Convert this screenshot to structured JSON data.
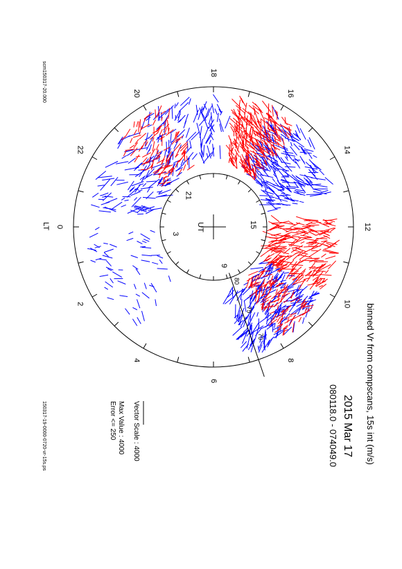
{
  "header": {
    "title": "binned Vr from compscans, 15s int (m/s)",
    "date": "2015 Mar 17",
    "time_range": "080118.0 - 074049.0"
  },
  "legend": {
    "vector_scale": "Vector Scale : 4000",
    "max_value": "Max Value : 4000",
    "error": "Error <= 250"
  },
  "footer": {
    "left_file": "scm150317-20.000",
    "right_file": "150317-19-0000-0720-vr-15s.ps"
  },
  "inner_dial": {
    "center_label": "UT",
    "hour_labels": [
      "21",
      "3",
      "15",
      "9"
    ]
  },
  "chart_data": {
    "type": "polar vector plot",
    "lt_label": "LT",
    "lt_hours": [
      0,
      2,
      4,
      6,
      8,
      10,
      12,
      14,
      16,
      18,
      20,
      22
    ],
    "latitude_labels": [
      "80",
      "75",
      "70"
    ],
    "colors": {
      "series_a": "#ff0000",
      "series_b": "#0000ff",
      "axes": "#000000"
    },
    "series": [
      {
        "color": "red",
        "regions": [
          {
            "lt_from": 10,
            "lt_to": 12.3,
            "density": "high"
          },
          {
            "lt_from": 15.2,
            "lt_to": 17.2,
            "density": "high"
          },
          {
            "lt_from": 19.5,
            "lt_to": 21.5,
            "density": "medium"
          },
          {
            "lt_from": 8.2,
            "lt_to": 9.5,
            "density": "medium"
          }
        ]
      },
      {
        "color": "blue",
        "regions": [
          {
            "lt_from": 13,
            "lt_to": 16,
            "density": "high"
          },
          {
            "lt_from": 17.5,
            "lt_to": 23.5,
            "density": "high"
          },
          {
            "lt_from": 7,
            "lt_to": 10,
            "density": "high"
          },
          {
            "lt_from": 0,
            "lt_to": 3.5,
            "density": "low"
          }
        ]
      }
    ]
  }
}
